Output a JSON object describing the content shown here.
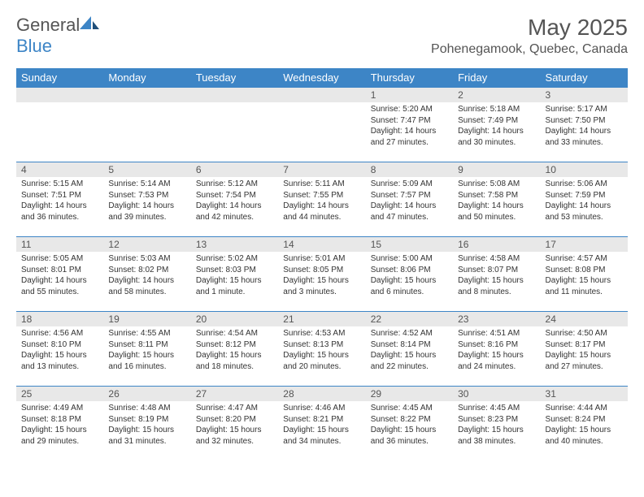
{
  "logo": {
    "text1": "General",
    "text2": "Blue"
  },
  "title": "May 2025",
  "location": "Pohenegamook, Quebec, Canada",
  "weekdays": [
    "Sunday",
    "Monday",
    "Tuesday",
    "Wednesday",
    "Thursday",
    "Friday",
    "Saturday"
  ],
  "colors": {
    "header_bg": "#3d85c6",
    "header_text": "#ffffff",
    "daynum_bg": "#e8e8e8",
    "border": "#3d85c6",
    "text": "#333333"
  },
  "weeks": [
    [
      null,
      null,
      null,
      null,
      {
        "n": "1",
        "sunrise": "5:20 AM",
        "sunset": "7:47 PM",
        "daylight": "14 hours and 27 minutes."
      },
      {
        "n": "2",
        "sunrise": "5:18 AM",
        "sunset": "7:49 PM",
        "daylight": "14 hours and 30 minutes."
      },
      {
        "n": "3",
        "sunrise": "5:17 AM",
        "sunset": "7:50 PM",
        "daylight": "14 hours and 33 minutes."
      }
    ],
    [
      {
        "n": "4",
        "sunrise": "5:15 AM",
        "sunset": "7:51 PM",
        "daylight": "14 hours and 36 minutes."
      },
      {
        "n": "5",
        "sunrise": "5:14 AM",
        "sunset": "7:53 PM",
        "daylight": "14 hours and 39 minutes."
      },
      {
        "n": "6",
        "sunrise": "5:12 AM",
        "sunset": "7:54 PM",
        "daylight": "14 hours and 42 minutes."
      },
      {
        "n": "7",
        "sunrise": "5:11 AM",
        "sunset": "7:55 PM",
        "daylight": "14 hours and 44 minutes."
      },
      {
        "n": "8",
        "sunrise": "5:09 AM",
        "sunset": "7:57 PM",
        "daylight": "14 hours and 47 minutes."
      },
      {
        "n": "9",
        "sunrise": "5:08 AM",
        "sunset": "7:58 PM",
        "daylight": "14 hours and 50 minutes."
      },
      {
        "n": "10",
        "sunrise": "5:06 AM",
        "sunset": "7:59 PM",
        "daylight": "14 hours and 53 minutes."
      }
    ],
    [
      {
        "n": "11",
        "sunrise": "5:05 AM",
        "sunset": "8:01 PM",
        "daylight": "14 hours and 55 minutes."
      },
      {
        "n": "12",
        "sunrise": "5:03 AM",
        "sunset": "8:02 PM",
        "daylight": "14 hours and 58 minutes."
      },
      {
        "n": "13",
        "sunrise": "5:02 AM",
        "sunset": "8:03 PM",
        "daylight": "15 hours and 1 minute."
      },
      {
        "n": "14",
        "sunrise": "5:01 AM",
        "sunset": "8:05 PM",
        "daylight": "15 hours and 3 minutes."
      },
      {
        "n": "15",
        "sunrise": "5:00 AM",
        "sunset": "8:06 PM",
        "daylight": "15 hours and 6 minutes."
      },
      {
        "n": "16",
        "sunrise": "4:58 AM",
        "sunset": "8:07 PM",
        "daylight": "15 hours and 8 minutes."
      },
      {
        "n": "17",
        "sunrise": "4:57 AM",
        "sunset": "8:08 PM",
        "daylight": "15 hours and 11 minutes."
      }
    ],
    [
      {
        "n": "18",
        "sunrise": "4:56 AM",
        "sunset": "8:10 PM",
        "daylight": "15 hours and 13 minutes."
      },
      {
        "n": "19",
        "sunrise": "4:55 AM",
        "sunset": "8:11 PM",
        "daylight": "15 hours and 16 minutes."
      },
      {
        "n": "20",
        "sunrise": "4:54 AM",
        "sunset": "8:12 PM",
        "daylight": "15 hours and 18 minutes."
      },
      {
        "n": "21",
        "sunrise": "4:53 AM",
        "sunset": "8:13 PM",
        "daylight": "15 hours and 20 minutes."
      },
      {
        "n": "22",
        "sunrise": "4:52 AM",
        "sunset": "8:14 PM",
        "daylight": "15 hours and 22 minutes."
      },
      {
        "n": "23",
        "sunrise": "4:51 AM",
        "sunset": "8:16 PM",
        "daylight": "15 hours and 24 minutes."
      },
      {
        "n": "24",
        "sunrise": "4:50 AM",
        "sunset": "8:17 PM",
        "daylight": "15 hours and 27 minutes."
      }
    ],
    [
      {
        "n": "25",
        "sunrise": "4:49 AM",
        "sunset": "8:18 PM",
        "daylight": "15 hours and 29 minutes."
      },
      {
        "n": "26",
        "sunrise": "4:48 AM",
        "sunset": "8:19 PM",
        "daylight": "15 hours and 31 minutes."
      },
      {
        "n": "27",
        "sunrise": "4:47 AM",
        "sunset": "8:20 PM",
        "daylight": "15 hours and 32 minutes."
      },
      {
        "n": "28",
        "sunrise": "4:46 AM",
        "sunset": "8:21 PM",
        "daylight": "15 hours and 34 minutes."
      },
      {
        "n": "29",
        "sunrise": "4:45 AM",
        "sunset": "8:22 PM",
        "daylight": "15 hours and 36 minutes."
      },
      {
        "n": "30",
        "sunrise": "4:45 AM",
        "sunset": "8:23 PM",
        "daylight": "15 hours and 38 minutes."
      },
      {
        "n": "31",
        "sunrise": "4:44 AM",
        "sunset": "8:24 PM",
        "daylight": "15 hours and 40 minutes."
      }
    ]
  ],
  "labels": {
    "sunrise": "Sunrise:",
    "sunset": "Sunset:",
    "daylight": "Daylight:"
  }
}
